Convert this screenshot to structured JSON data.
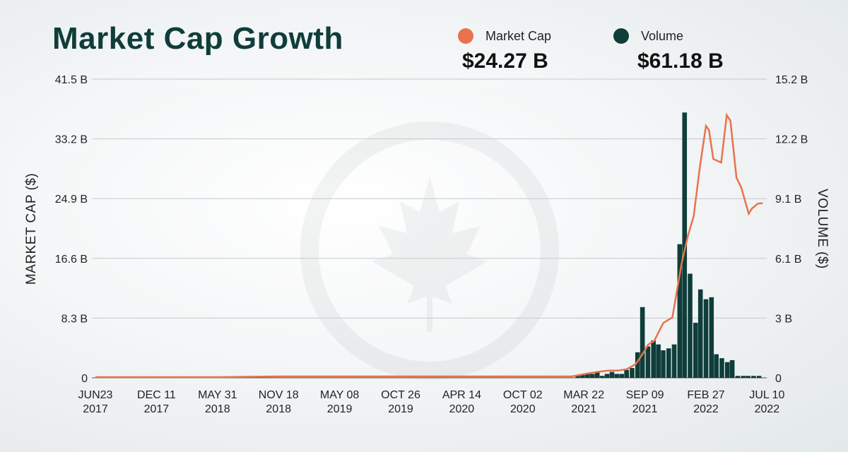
{
  "title": "Market Cap Growth",
  "legend": {
    "market_cap": {
      "label": "Market Cap",
      "value": "$24.27 B",
      "color": "#e8734c"
    },
    "volume": {
      "label": "Volume",
      "value": "$61.18 B",
      "color": "#0f3d3a"
    }
  },
  "chart_data": {
    "type": "bar",
    "xlabel": "",
    "ylabel": "MARKET CAP ($)",
    "y2label": "VOLUME ($)",
    "ylim": [
      0,
      41.5
    ],
    "y2lim": [
      0,
      15.2
    ],
    "yticks": [
      "0",
      "8.3 B",
      "16.6 B",
      "24.9 B",
      "33.2 B",
      "41.5 B"
    ],
    "y2ticks": [
      "0",
      "3 B",
      "6.1 B",
      "9.1 B",
      "12.2 B",
      "15.2 B"
    ],
    "xticks": [
      [
        "JUN23",
        "2017"
      ],
      [
        "DEC 11",
        "2017"
      ],
      [
        "MAY 31",
        "2018"
      ],
      [
        "NOV 18",
        "2018"
      ],
      [
        "MAY 08",
        "2019"
      ],
      [
        "OCT 26",
        "2019"
      ],
      [
        "APR 14",
        "2020"
      ],
      [
        "OCT 02",
        "2020"
      ],
      [
        "MAR 22",
        "2021"
      ],
      [
        "SEP 09",
        "2021"
      ],
      [
        "FEB 27",
        "2022"
      ],
      [
        "JUL 10",
        "2022"
      ]
    ],
    "x_index": [
      0,
      1,
      2,
      3,
      4,
      5,
      6,
      7,
      8,
      9,
      10,
      11
    ],
    "series": [
      {
        "name": "Market Cap",
        "type": "line",
        "axis": "left",
        "color": "#e8734c",
        "x": [
          0,
          1,
          2,
          3,
          4,
          5,
          6,
          7,
          7.8,
          8.0,
          8.2,
          8.4,
          8.55,
          8.7,
          8.85,
          9.0,
          9.05,
          9.15,
          9.3,
          9.45,
          9.6,
          9.7,
          9.8,
          9.9,
          10.0,
          10.05,
          10.12,
          10.25,
          10.34,
          10.4,
          10.5,
          10.58,
          10.7,
          10.75,
          10.85,
          10.93
        ],
        "values": [
          0.1,
          0.1,
          0.1,
          0.2,
          0.2,
          0.2,
          0.2,
          0.2,
          0.2,
          0.5,
          0.8,
          1.0,
          1.0,
          1.2,
          1.9,
          3.8,
          4.6,
          5.1,
          7.6,
          8.4,
          15.8,
          19.6,
          22.5,
          29.3,
          35.0,
          34.4,
          30.4,
          29.9,
          36.5,
          35.7,
          27.8,
          26.4,
          22.8,
          23.5,
          24.2,
          24.27
        ]
      },
      {
        "name": "Volume",
        "type": "bar",
        "axis": "right",
        "color": "#0f3d3a",
        "x": [
          7.9,
          7.98,
          8.06,
          8.14,
          8.22,
          8.3,
          8.38,
          8.46,
          8.54,
          8.62,
          8.7,
          8.79,
          8.88,
          8.96,
          9.05,
          9.14,
          9.22,
          9.3,
          9.39,
          9.48,
          9.57,
          9.65,
          9.74,
          9.83,
          9.91,
          10.0,
          10.09,
          10.17,
          10.26,
          10.35,
          10.43,
          10.52,
          10.61,
          10.69,
          10.78,
          10.87
        ],
        "values": [
          0.1,
          0.15,
          0.2,
          0.2,
          0.3,
          0.1,
          0.2,
          0.3,
          0.2,
          0.2,
          0.4,
          0.5,
          1.3,
          3.6,
          1.6,
          1.9,
          1.7,
          1.4,
          1.5,
          1.7,
          6.8,
          13.5,
          5.3,
          2.8,
          4.5,
          4.0,
          4.1,
          1.2,
          1.0,
          0.8,
          0.9,
          0.1,
          0.1,
          0.1,
          0.1,
          0.1
        ]
      }
    ]
  }
}
